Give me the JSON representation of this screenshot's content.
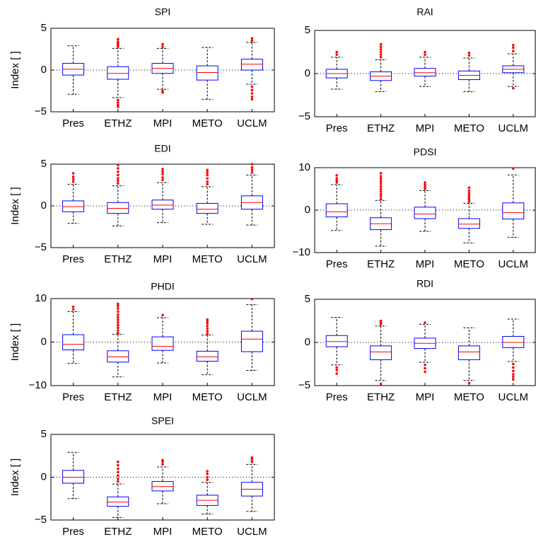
{
  "chart_data": [
    {
      "type": "box",
      "title": "SPI",
      "ylabel": "Index [ ]",
      "categories": [
        "Pres",
        "ETHZ",
        "MPI",
        "METO",
        "UCLM"
      ],
      "ylim": [
        -5,
        5
      ],
      "yticks": [
        {
          "value": -5,
          "label": "−5"
        },
        0,
        5
      ],
      "hline": 0,
      "box_color": "#0000ff",
      "median_color": "#ff0000",
      "whisker_color": "#000000",
      "outlier_color": "#ff0000",
      "boxes": [
        {
          "low": -2.9,
          "q1": -0.6,
          "median": 0.1,
          "q3": 0.8,
          "high": 2.9,
          "outliers": []
        },
        {
          "low": -3.3,
          "q1": -1.1,
          "median": -0.4,
          "q3": 0.4,
          "high": 2.6,
          "outliers": [
            2.8,
            3.0,
            3.2,
            3.4,
            3.7,
            -3.6,
            -3.9,
            -4.2,
            -4.4
          ]
        },
        {
          "low": -2.3,
          "q1": -0.4,
          "median": 0.2,
          "q3": 0.8,
          "high": 2.6,
          "outliers": [
            2.8,
            3.1,
            -2.5,
            -2.7
          ]
        },
        {
          "low": -3.5,
          "q1": -1.2,
          "median": -0.3,
          "q3": 0.5,
          "high": 2.7,
          "outliers": []
        },
        {
          "low": -1.7,
          "q1": 0.0,
          "median": 0.7,
          "q3": 1.3,
          "high": 3.3,
          "outliers": [
            3.5,
            3.8,
            -2.0,
            -2.4,
            -2.8,
            -3.2,
            -3.5
          ]
        }
      ]
    },
    {
      "type": "box",
      "title": "RAI",
      "categories": [
        "Pres",
        "ETHZ",
        "MPI",
        "METO",
        "UCLM"
      ],
      "ylim": [
        -5,
        5
      ],
      "yticks": [
        {
          "value": -5,
          "label": "−5"
        },
        0,
        5
      ],
      "hline": 0,
      "box_color": "#0000ff",
      "median_color": "#ff0000",
      "whisker_color": "#000000",
      "outlier_color": "#ff0000",
      "boxes": [
        {
          "low": -1.8,
          "q1": -0.5,
          "median": 0.0,
          "q3": 0.5,
          "high": 1.9,
          "outliers": [
            2.2,
            2.5
          ]
        },
        {
          "low": -2.1,
          "q1": -0.8,
          "median": -0.3,
          "q3": 0.2,
          "high": 1.6,
          "outliers": [
            1.9,
            2.2,
            2.5,
            2.8,
            3.1,
            3.4
          ]
        },
        {
          "low": -1.5,
          "q1": -0.3,
          "median": 0.1,
          "q3": 0.6,
          "high": 1.9,
          "outliers": [
            2.2,
            2.5
          ]
        },
        {
          "low": -2.1,
          "q1": -0.7,
          "median": -0.2,
          "q3": 0.3,
          "high": 1.8,
          "outliers": [
            2.1,
            2.4
          ]
        },
        {
          "low": -1.5,
          "q1": 0.1,
          "median": 0.5,
          "q3": 0.9,
          "high": 2.3,
          "outliers": [
            2.6,
            3.0,
            3.3,
            -1.7
          ]
        }
      ]
    },
    {
      "type": "box",
      "title": "EDI",
      "ylabel": "Index [ ]",
      "categories": [
        "Pres",
        "ETHZ",
        "MPI",
        "METO",
        "UCLM"
      ],
      "ylim": [
        -5,
        5
      ],
      "yticks": [
        {
          "value": -5,
          "label": "−5"
        },
        0,
        5
      ],
      "hline": 0,
      "box_color": "#0000ff",
      "median_color": "#ff0000",
      "whisker_color": "#000000",
      "outlier_color": "#ff0000",
      "boxes": [
        {
          "low": -2.1,
          "q1": -0.7,
          "median": -0.1,
          "q3": 0.6,
          "high": 2.6,
          "outliers": [
            2.9,
            3.2,
            3.5,
            3.9
          ]
        },
        {
          "low": -2.4,
          "q1": -0.9,
          "median": -0.3,
          "q3": 0.4,
          "high": 2.4,
          "outliers": [
            2.7,
            3.0,
            3.3,
            3.7,
            4.1,
            4.5,
            4.9
          ]
        },
        {
          "low": -2.0,
          "q1": -0.4,
          "median": 0.1,
          "q3": 0.7,
          "high": 2.8,
          "outliers": [
            3.1,
            3.4,
            3.8,
            4.1,
            4.4
          ]
        },
        {
          "low": -2.2,
          "q1": -0.9,
          "median": -0.4,
          "q3": 0.3,
          "high": 2.3,
          "outliers": [
            2.6,
            2.9,
            3.3,
            3.7,
            4.0,
            4.3
          ]
        },
        {
          "low": -2.3,
          "q1": -0.4,
          "median": 0.4,
          "q3": 1.2,
          "high": 3.7,
          "outliers": [
            4.0,
            4.3,
            4.6,
            5.0
          ]
        }
      ]
    },
    {
      "type": "box",
      "title": "PDSI",
      "categories": [
        "Pres",
        "ETHZ",
        "MPI",
        "METO",
        "UCLM"
      ],
      "ylim": [
        -10,
        10
      ],
      "yticks": [
        {
          "value": -10,
          "label": "−10"
        },
        0,
        10
      ],
      "hline": 0,
      "box_color": "#0000ff",
      "median_color": "#ff0000",
      "whisker_color": "#000000",
      "outlier_color": "#ff0000",
      "boxes": [
        {
          "low": -4.8,
          "q1": -1.6,
          "median": -0.4,
          "q3": 1.5,
          "high": 6.0,
          "outliers": [
            6.5,
            7.0,
            7.5,
            8.2
          ]
        },
        {
          "low": -8.5,
          "q1": -4.6,
          "median": -3.2,
          "q3": -1.8,
          "high": 2.3,
          "outliers": [
            2.6,
            3.2,
            3.8,
            4.4,
            5.0,
            5.6,
            6.2,
            6.8,
            7.4,
            8.0,
            8.7
          ]
        },
        {
          "low": -5.0,
          "q1": -2.0,
          "median": -0.9,
          "q3": 0.7,
          "high": 4.6,
          "outliers": [
            5.0,
            5.5,
            6.0,
            6.5
          ]
        },
        {
          "low": -7.7,
          "q1": -4.3,
          "median": -3.3,
          "q3": -2.0,
          "high": 1.6,
          "outliers": [
            2.0,
            2.5,
            3.0,
            3.5,
            4.0,
            4.6,
            5.3
          ]
        },
        {
          "low": -6.4,
          "q1": -2.1,
          "median": -0.6,
          "q3": 1.7,
          "high": 8.3,
          "outliers": [
            9.8
          ]
        }
      ]
    },
    {
      "type": "box",
      "title": "PHDI",
      "ylabel": "Index [ ]",
      "categories": [
        "Pres",
        "ETHZ",
        "MPI",
        "METO",
        "UCLM"
      ],
      "ylim": [
        -10,
        10
      ],
      "yticks": [
        {
          "value": -10,
          "label": "−10"
        },
        0,
        10
      ],
      "hline": 0,
      "box_color": "#0000ff",
      "median_color": "#ff0000",
      "whisker_color": "#000000",
      "outlier_color": "#ff0000",
      "boxes": [
        {
          "low": -4.9,
          "q1": -1.8,
          "median": -0.5,
          "q3": 1.7,
          "high": 7.0,
          "outliers": [
            7.5,
            8.1
          ]
        },
        {
          "low": -8.0,
          "q1": -4.6,
          "median": -3.4,
          "q3": -2.0,
          "high": 1.8,
          "outliers": [
            2.1,
            2.7,
            3.3,
            3.9,
            4.5,
            5.1,
            5.7,
            6.3,
            7.0,
            7.7,
            8.3,
            8.8
          ]
        },
        {
          "low": -4.8,
          "q1": -1.9,
          "median": -1.0,
          "q3": 1.2,
          "high": 5.6,
          "outliers": [
            6.2
          ]
        },
        {
          "low": -7.5,
          "q1": -4.4,
          "median": -3.4,
          "q3": -2.1,
          "high": 1.6,
          "outliers": [
            1.9,
            2.5,
            3.1,
            3.7,
            4.3,
            4.8,
            5.2
          ]
        },
        {
          "low": -6.5,
          "q1": -2.2,
          "median": 0.7,
          "q3": 2.5,
          "high": 8.6,
          "outliers": [
            9.9
          ]
        }
      ]
    },
    {
      "type": "box",
      "title": "RDI",
      "categories": [
        "Pres",
        "ETHZ",
        "MPI",
        "METO",
        "UCLM"
      ],
      "ylim": [
        -5,
        5
      ],
      "yticks": [
        {
          "value": -5,
          "label": "−5"
        },
        0,
        5
      ],
      "hline": 0,
      "box_color": "#0000ff",
      "median_color": "#ff0000",
      "whisker_color": "#000000",
      "outlier_color": "#ff0000",
      "boxes": [
        {
          "low": -2.6,
          "q1": -0.5,
          "median": 0.1,
          "q3": 0.8,
          "high": 2.9,
          "outliers": [
            -2.9,
            -3.2,
            -3.6
          ]
        },
        {
          "low": -4.4,
          "q1": -2.0,
          "median": -1.1,
          "q3": -0.4,
          "high": 1.9,
          "outliers": [
            2.1,
            2.3,
            2.5,
            -4.8
          ]
        },
        {
          "low": -2.3,
          "q1": -0.7,
          "median": -0.1,
          "q3": 0.5,
          "high": 2.1,
          "outliers": [
            2.3,
            -2.6,
            -3.0,
            -3.4
          ]
        },
        {
          "low": -4.4,
          "q1": -2.0,
          "median": -1.1,
          "q3": -0.4,
          "high": 1.7,
          "outliers": [
            -4.7
          ]
        },
        {
          "low": -2.2,
          "q1": -0.6,
          "median": 0.0,
          "q3": 0.7,
          "high": 2.7,
          "outliers": [
            -2.5,
            -2.9,
            -3.3,
            -3.7,
            -4.0,
            -4.3
          ]
        }
      ]
    },
    {
      "type": "box",
      "title": "SPEI",
      "ylabel": "Index [ ]",
      "categories": [
        "Pres",
        "ETHZ",
        "MPI",
        "METO",
        "UCLM"
      ],
      "ylim": [
        -5,
        5
      ],
      "yticks": [
        {
          "value": -5,
          "label": "−5"
        },
        0,
        5
      ],
      "hline": 0,
      "box_color": "#0000ff",
      "median_color": "#ff0000",
      "whisker_color": "#000000",
      "outlier_color": "#ff0000",
      "boxes": [
        {
          "low": -2.5,
          "q1": -0.7,
          "median": 0.0,
          "q3": 0.8,
          "high": 2.9,
          "outliers": []
        },
        {
          "low": -4.7,
          "q1": -3.4,
          "median": -2.9,
          "q3": -2.3,
          "high": -0.8,
          "outliers": [
            -0.5,
            -0.2,
            0.2,
            0.6,
            1.0,
            1.4,
            1.8
          ]
        },
        {
          "low": -3.1,
          "q1": -1.6,
          "median": -1.1,
          "q3": -0.5,
          "high": 1.2,
          "outliers": [
            1.5,
            1.8,
            2.0
          ]
        },
        {
          "low": -4.3,
          "q1": -3.3,
          "median": -2.7,
          "q3": -2.1,
          "high": -0.6,
          "outliers": [
            -0.3,
            0.0,
            0.4,
            0.7
          ]
        },
        {
          "low": -4.0,
          "q1": -2.2,
          "median": -1.4,
          "q3": -0.6,
          "high": 1.5,
          "outliers": [
            1.8,
            2.1,
            2.3
          ]
        }
      ]
    }
  ]
}
